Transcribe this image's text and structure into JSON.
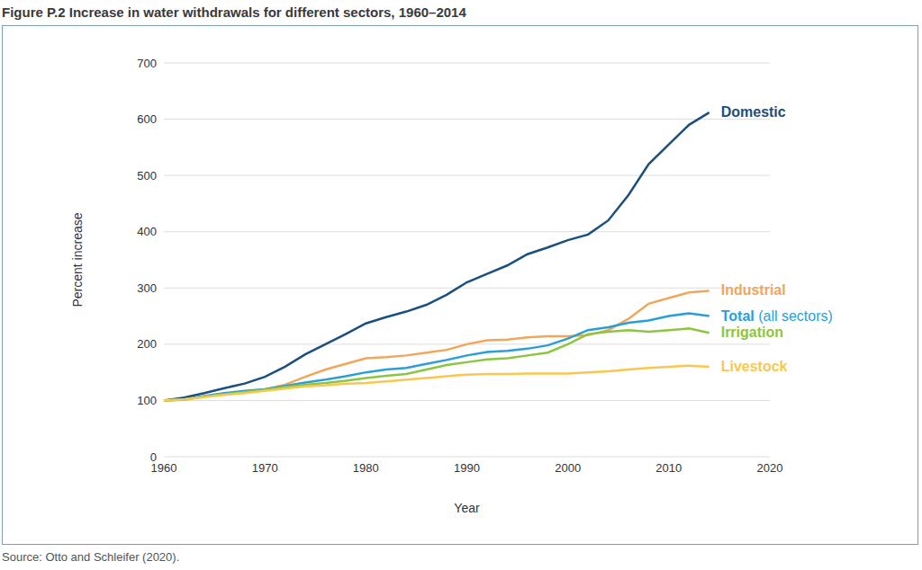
{
  "chart_data": {
    "type": "line",
    "title": "Figure P.2 Increase in water withdrawals for different sectors, 1960–2014",
    "source": "Source: Otto and Schleifer (2020).",
    "x_label": "Year",
    "y_label": "Percent increase",
    "x": [
      1960,
      1962,
      1964,
      1966,
      1968,
      1970,
      1972,
      1974,
      1976,
      1978,
      1980,
      1982,
      1984,
      1986,
      1988,
      1990,
      1992,
      1994,
      1996,
      1998,
      2000,
      2002,
      2004,
      2006,
      2008,
      2010,
      2012,
      2014
    ],
    "series": [
      {
        "name": "Domestic",
        "color": "#1b4f7e",
        "values": [
          100,
          105,
          113,
          122,
          130,
          142,
          160,
          182,
          200,
          218,
          237,
          248,
          258,
          270,
          288,
          310,
          325,
          340,
          360,
          372,
          385,
          395,
          420,
          465,
          520,
          555,
          590,
          612
        ]
      },
      {
        "name": "Industrial",
        "color": "#f2a65a",
        "values": [
          100,
          102,
          107,
          112,
          116,
          120,
          128,
          142,
          155,
          165,
          175,
          177,
          180,
          185,
          190,
          200,
          207,
          208,
          212,
          214,
          214,
          216,
          225,
          245,
          272,
          282,
          292,
          295
        ]
      },
      {
        "name": "Total (all sectors)",
        "color": "#2a9fd6",
        "values": [
          100,
          102,
          108,
          113,
          117,
          120,
          126,
          132,
          137,
          143,
          150,
          155,
          158,
          165,
          172,
          180,
          186,
          188,
          192,
          198,
          210,
          225,
          230,
          238,
          242,
          250,
          255,
          250
        ]
      },
      {
        "name": "Irrigation",
        "color": "#8cc63f",
        "values": [
          100,
          101,
          107,
          111,
          115,
          119,
          124,
          128,
          131,
          135,
          140,
          144,
          147,
          155,
          163,
          168,
          173,
          175,
          180,
          185,
          200,
          218,
          222,
          225,
          222,
          225,
          228,
          220
        ]
      },
      {
        "name": "Livestock",
        "color": "#f9c74f",
        "values": [
          100,
          102,
          106,
          110,
          113,
          117,
          121,
          125,
          127,
          130,
          131,
          134,
          137,
          140,
          143,
          146,
          147,
          147,
          148,
          148,
          148,
          150,
          152,
          155,
          158,
          160,
          162,
          160
        ]
      }
    ],
    "xlim": [
      1960,
      2020
    ],
    "xticks": [
      1960,
      1970,
      1980,
      1990,
      2000,
      2010,
      2020
    ],
    "ylim": [
      0,
      700
    ],
    "yticks": [
      0,
      100,
      200,
      300,
      400,
      500,
      600,
      700
    ],
    "grid": true
  }
}
